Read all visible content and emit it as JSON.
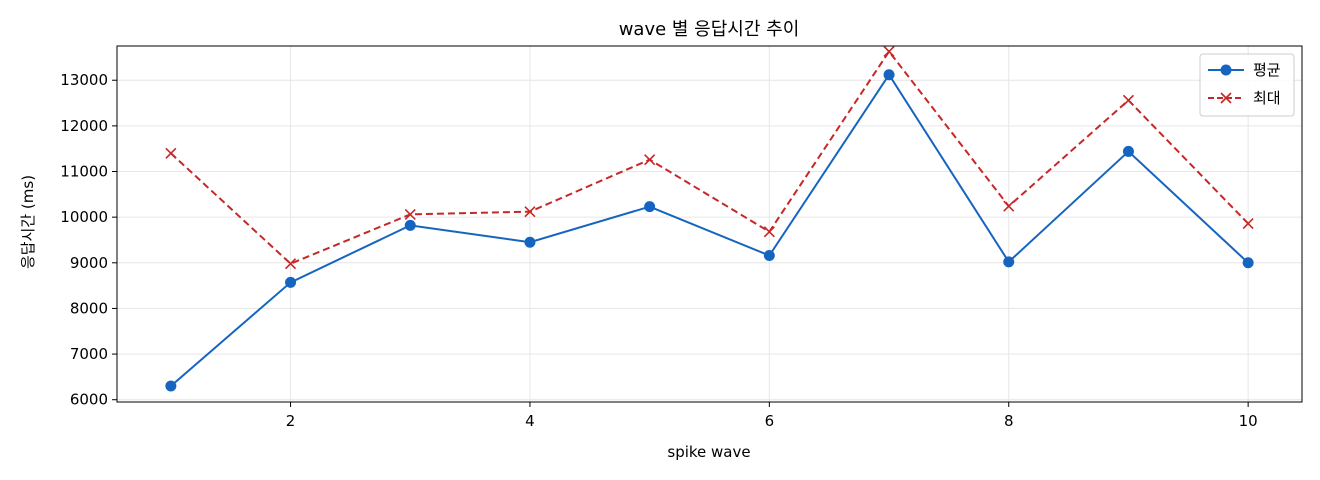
{
  "chart_data": {
    "type": "line",
    "title": "wave 별 응답시간 추이",
    "xlabel": "spike wave",
    "ylabel": "응답시간 (ms)",
    "x": [
      1,
      2,
      3,
      4,
      5,
      6,
      7,
      8,
      9,
      10
    ],
    "xticks": [
      2,
      4,
      6,
      8,
      10
    ],
    "yticks": [
      6000,
      7000,
      8000,
      9000,
      10000,
      11000,
      12000,
      13000
    ],
    "xlim": [
      0.55,
      10.45
    ],
    "ylim": [
      5950,
      13750
    ],
    "grid": true,
    "legend_position": "top-right",
    "series": [
      {
        "name": "평균",
        "color": "#1565c0",
        "marker": "circle",
        "line_style": "solid",
        "values": [
          6300,
          8570,
          9820,
          9450,
          10230,
          9160,
          13120,
          9020,
          11440,
          9000
        ]
      },
      {
        "name": "최대",
        "color": "#c62828",
        "marker": "x",
        "line_style": "dashed",
        "values": [
          11400,
          8980,
          10060,
          10120,
          11260,
          9680,
          13630,
          10240,
          12560,
          9860
        ]
      }
    ]
  }
}
